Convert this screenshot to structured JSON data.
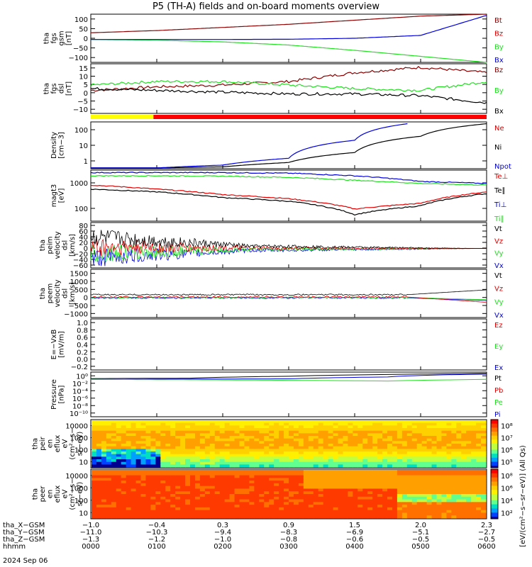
{
  "title": "P5 (TH-A) fields and on-board moments overview",
  "colors": {
    "black": "#000000",
    "red": "#e00000",
    "green": "#20e020",
    "blue": "#0000e0",
    "darkred": "#8b0000",
    "yellow": "#ffff00"
  },
  "chart_data": {
    "type": "line",
    "title": "P5 (TH-A) fields and on-board moments overview",
    "panels": [
      {
        "id": "fgs_gsm",
        "ylabel": [
          "tha",
          "fgs",
          "gsm",
          "[nT]"
        ],
        "yticks": [
          "100",
          "50",
          "0",
          "−50",
          "−100"
        ],
        "ylim": [
          -100,
          100
        ],
        "series": [
          {
            "name": "Bt",
            "color": "darkred",
            "x": [
              0,
              1,
              2,
              3,
              4,
              5,
              6
            ],
            "y": [
              23,
              32,
              45,
              58,
              75,
              92,
              100
            ]
          },
          {
            "name": "Bz",
            "color": "red"
          },
          {
            "name": "By",
            "color": "green",
            "x": [
              0,
              1,
              2,
              3,
              4,
              5,
              6
            ],
            "y": [
              -5,
              -8,
              -15,
              -28,
              -50,
              -75,
              -100
            ]
          },
          {
            "name": "Bx",
            "color": "blue",
            "x": [
              0,
              1,
              2,
              3,
              4,
              5,
              6
            ],
            "y": [
              -5,
              -5,
              -5,
              -4,
              0,
              12,
              95
            ]
          }
        ]
      },
      {
        "id": "fgs_dsl",
        "ylabel": [
          "tha",
          "fgs",
          "dsl",
          "[nT]"
        ],
        "yticks": [
          "15",
          "10",
          "5",
          "0",
          "−5",
          "−10"
        ],
        "ylim": [
          -13,
          15
        ],
        "series": [
          {
            "name": "Bz",
            "color": "darkred",
            "x": [
              0,
              1,
              2,
              3,
              4,
              5,
              6
            ],
            "y": [
              0,
              2,
              3,
              5,
              10,
              13,
              10
            ]
          },
          {
            "name": "By",
            "color": "green",
            "x": [
              0,
              1,
              2,
              3,
              4,
              5,
              6
            ],
            "y": [
              3,
              5,
              5,
              3,
              1,
              0,
              5
            ]
          },
          {
            "name": "Bx",
            "color": "black",
            "x": [
              0,
              1,
              2,
              3,
              4,
              5,
              6
            ],
            "y": [
              1,
              0,
              -1,
              -2,
              -2,
              -3,
              -7
            ]
          }
        ]
      },
      {
        "id": "density",
        "ylabel": [
          "Density",
          "[cm−3]"
        ],
        "yticks": [
          "100",
          "10",
          "1"
        ],
        "log": true,
        "series": [
          {
            "name": "Ne",
            "color": "red"
          },
          {
            "name": "Ni",
            "color": "black",
            "x": [
              0,
              1,
              2,
              3,
              4,
              5,
              6
            ],
            "y": [
              0.35,
              0.35,
              0.4,
              0.7,
              2.5,
              20,
              100
            ]
          },
          {
            "name": "Npot",
            "color": "blue",
            "x": [
              0,
              1,
              2,
              3,
              4,
              4.8
            ],
            "y": [
              0.35,
              0.35,
              0.5,
              1.2,
              12,
              100
            ]
          }
        ]
      },
      {
        "id": "temp",
        "ylabel": [
          "magt3",
          "[eV]"
        ],
        "yticks": [
          "1000",
          "100"
        ],
        "log": true,
        "series": [
          {
            "name": "Te⊥",
            "color": "red",
            "x": [
              0,
              1,
              2,
              3,
              4,
              5,
              6
            ],
            "y": [
              1300,
              900,
              550,
              380,
              150,
              250,
              700
            ]
          },
          {
            "name": "Te∥",
            "color": "black",
            "x": [
              0,
              1,
              2,
              3,
              4,
              5,
              6
            ],
            "y": [
              900,
              700,
              420,
              300,
              90,
              200,
              600
            ]
          },
          {
            "name": "Ti⊥",
            "color": "blue",
            "x": [
              0,
              1,
              2,
              3,
              4,
              5,
              6
            ],
            "y": [
              4000,
              4000,
              4000,
              3800,
              3000,
              1800,
              1500
            ]
          },
          {
            "name": "Ti∥",
            "color": "green",
            "x": [
              0,
              1,
              2,
              3,
              4,
              5,
              6
            ],
            "y": [
              3000,
              3000,
              2900,
              2600,
              2000,
              1500,
              1300
            ]
          }
        ]
      },
      {
        "id": "peim",
        "ylabel": [
          "tha",
          "peim",
          "velocity",
          "dsl",
          "[km/s]"
        ],
        "yticks": [
          "80",
          "60",
          "40",
          "20",
          "0",
          "−20",
          "−40",
          "−60"
        ],
        "ylim": [
          -60,
          80
        ],
        "series": [
          {
            "name": "Vt",
            "color": "black"
          },
          {
            "name": "Vz",
            "color": "red"
          },
          {
            "name": "Vy",
            "color": "green"
          },
          {
            "name": "Vx",
            "color": "blue"
          }
        ]
      },
      {
        "id": "peem",
        "ylabel": [
          "tha",
          "peem",
          "velocity",
          "dsl",
          "[km/s]"
        ],
        "yticks": [
          "1500",
          "1000",
          "500",
          "0",
          "−500",
          "−1000"
        ],
        "ylim": [
          -1200,
          1500
        ],
        "series": [
          {
            "name": "Vt",
            "color": "black"
          },
          {
            "name": "Vz",
            "color": "red"
          },
          {
            "name": "Vy",
            "color": "green"
          },
          {
            "name": "Vx",
            "color": "blue"
          }
        ]
      },
      {
        "id": "efield",
        "ylabel": [
          "E=−VxB",
          "[mV/m]"
        ],
        "yticks": [
          "1.0",
          "0.8",
          "0.6",
          "0.4",
          "0.2",
          "0.0",
          "−0.2"
        ],
        "ylim": [
          -0.2,
          1.0
        ],
        "series": [
          {
            "name": "Ez",
            "color": "red"
          },
          {
            "name": "Ey",
            "color": "green"
          },
          {
            "name": "Ex",
            "color": "blue"
          }
        ]
      },
      {
        "id": "pressure",
        "ylabel": [
          "Pressure",
          "[nPa]"
        ],
        "yticks": [
          "10⁰",
          "10⁻²",
          "10⁻⁴",
          "10⁻⁶",
          "10⁻⁸",
          "10⁻¹⁰"
        ],
        "log": true,
        "series": [
          {
            "name": "Pt",
            "color": "black"
          },
          {
            "name": "Pb",
            "color": "red"
          },
          {
            "name": "Pe",
            "color": "green"
          },
          {
            "name": "Pi",
            "color": "blue"
          }
        ]
      },
      {
        "id": "peir",
        "ylabel": [
          "tha",
          "peir",
          "en",
          "eflux",
          "eV",
          "(cm²−s−",
          "sr−eV)"
        ],
        "yticks": [
          "10000",
          "1000",
          "100",
          "10"
        ],
        "colorbar": [
          "10⁸",
          "10⁷",
          "10⁶",
          "10⁵"
        ],
        "colorbar_label": "[eV/(cm²−s−sr−eV)] (All Qs)"
      },
      {
        "id": "peer",
        "ylabel": [
          "tha",
          "peer",
          "en",
          "eflux",
          "eV",
          "(cm²−s−",
          "sr−eV)"
        ],
        "yticks": [
          "10000",
          "1000",
          "100",
          "10"
        ],
        "colorbar": [
          "10⁸",
          "10⁶",
          "10⁴",
          "10²"
        ],
        "colorbar_label": "[eV/(cm²−s−sr−eV)]"
      }
    ],
    "xaxis": {
      "rows": [
        {
          "label": "tha_X−GSM",
          "values": [
            "−1.0",
            "−0.4",
            "0.3",
            "0.9",
            "1.5",
            "2.0",
            "2.3"
          ]
        },
        {
          "label": "tha_Y−GSM",
          "values": [
            "−11.0",
            "−10.3",
            "−9.4",
            "−8.3",
            "−6.9",
            "−5.1",
            "−2.7"
          ]
        },
        {
          "label": "tha_Z−GSM",
          "values": [
            "−1.3",
            "−1.2",
            "−1.0",
            "−0.8",
            "−0.6",
            "−0.5",
            "−0.5"
          ]
        },
        {
          "label": "hhmm",
          "values": [
            "0000",
            "0100",
            "0200",
            "0300",
            "0400",
            "0500",
            "0600"
          ]
        }
      ],
      "date": "2024 Sep 06"
    }
  }
}
